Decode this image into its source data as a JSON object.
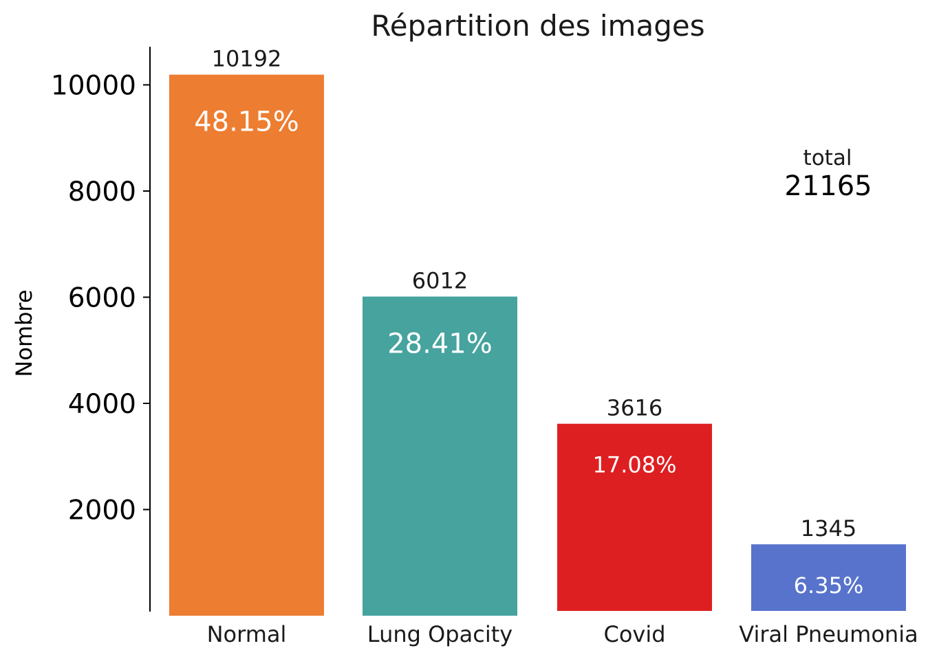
{
  "chart_data": {
    "type": "bar",
    "title": "Répartition des images",
    "xlabel": "",
    "ylabel": "Nombre",
    "ylim": [
      0,
      10700
    ],
    "yticks": [
      2000,
      4000,
      6000,
      8000,
      10000
    ],
    "categories": [
      "Normal",
      "Lung Opacity",
      "Covid",
      "Viral Pneumonia"
    ],
    "values": [
      10192,
      6012,
      3616,
      1345
    ],
    "value_labels": [
      "10192",
      "6012",
      "3616",
      "1345"
    ],
    "percent_labels": [
      "48.15%",
      "28.41%",
      "17.08%",
      "6.35%"
    ],
    "colors": [
      "#ED7D31",
      "#46A39E",
      "#DE1F21",
      "#5773CC"
    ],
    "total_label": "total",
    "total_value": "21165",
    "grid": false,
    "legend": "none"
  }
}
